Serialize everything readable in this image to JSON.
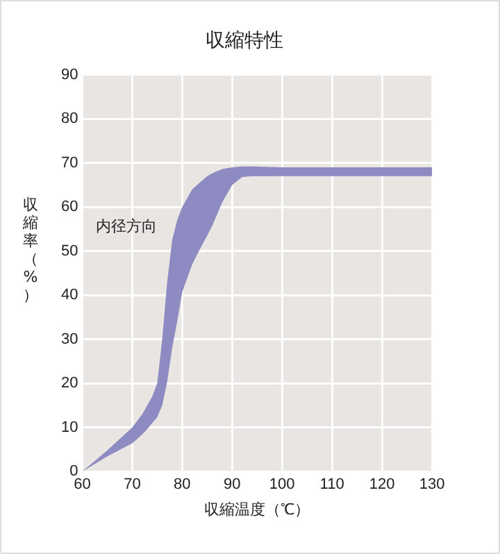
{
  "chart_data": {
    "type": "line",
    "title": "収縮特性",
    "xlabel": "収縮温度（℃）",
    "ylabel": "収縮率（%）",
    "annotations": [
      "内径方向"
    ],
    "xlim": [
      60,
      130
    ],
    "xticks": [
      60,
      70,
      80,
      90,
      100,
      110,
      120,
      130
    ],
    "ylim": [
      0,
      90
    ],
    "yticks": [
      0,
      10,
      20,
      30,
      40,
      50,
      60,
      70,
      80,
      90
    ],
    "grid": true,
    "legend": false,
    "series": [
      {
        "color": "#8d8bc1",
        "x": [
          60,
          65,
          70,
          72,
          73,
          74,
          75,
          76,
          77,
          78,
          79,
          80,
          82,
          84,
          85,
          86,
          88,
          90,
          92,
          94,
          100,
          110,
          120,
          130
        ],
        "values": [
          null,
          null,
          null,
          null,
          null,
          null,
          null,
          null,
          null,
          null,
          null,
          null,
          null,
          null,
          null,
          null,
          null,
          null,
          null,
          null,
          null,
          null,
          null,
          null
        ],
        "lower": [
          0,
          3.4,
          6.4,
          8.4,
          9.6,
          11,
          12.3,
          15,
          20.4,
          28,
          34,
          40.7,
          47,
          51.4,
          53.5,
          55.7,
          61,
          65,
          66.8,
          67,
          67,
          67,
          67,
          67
        ],
        "upper": [
          0,
          4.8,
          10,
          13,
          15,
          17,
          20,
          30,
          43,
          52.5,
          57,
          60,
          64,
          66,
          67,
          67.6,
          68.6,
          69,
          69.2,
          69.2,
          69,
          69,
          69,
          69
        ]
      }
    ]
  }
}
